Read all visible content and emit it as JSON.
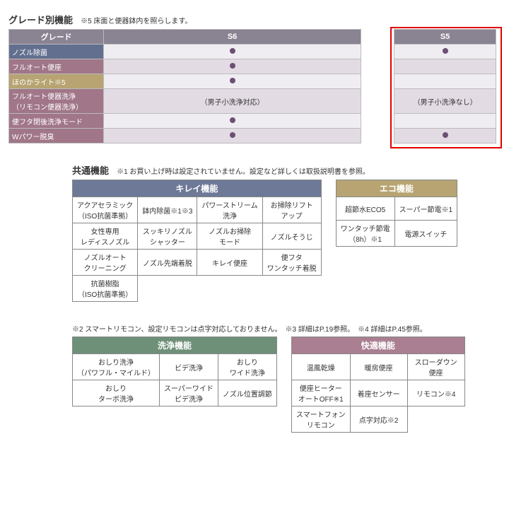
{
  "grade": {
    "title": "グレード別機能",
    "note": "※5 床面と便器鉢内を照らします。",
    "headers": {
      "grade": "グレード",
      "s6": "S6",
      "s5": "S5"
    },
    "rows": [
      {
        "label": "ノズル除菌",
        "labelBg": "#626f8f",
        "rowTint": "light",
        "s6": "dot",
        "s5": "dot"
      },
      {
        "label": "フルオート便座",
        "labelBg": "#a07688",
        "rowTint": "mid",
        "s6": "dot",
        "s5": ""
      },
      {
        "label": "ほのかライト※5",
        "labelBg": "#b7a472",
        "rowTint": "light",
        "s6": "dot",
        "s5": ""
      },
      {
        "label": "フルオート便器洗浄\n（リモコン便器洗浄）",
        "labelBg": "#a07688",
        "rowTint": "mid",
        "s6": "（男子小洗浄対応）",
        "s5": "（男子小洗浄なし）"
      },
      {
        "label": "便フタ閉後洗浄モード",
        "labelBg": "#a07688",
        "rowTint": "light",
        "s6": "dot",
        "s5": ""
      },
      {
        "label": "Wパワー脱臭",
        "labelBg": "#a07688",
        "rowTint": "mid",
        "s6": "dot",
        "s5": "dot"
      }
    ]
  },
  "common": {
    "title": "共通機能",
    "note": "※1 お買い上げ時は設定されていません。設定など詳しくは取扱説明書を参照。",
    "kirei": {
      "title": "キレイ機能",
      "rows": [
        [
          "アクアセラミック\n（ISO抗菌準拠）",
          "鉢内除菌※1※3",
          "パワーストリーム\n洗浄",
          "お掃除リフト\nアップ"
        ],
        [
          "女性専用\nレディスノズル",
          "スッキリノズル\nシャッター",
          "ノズルお掃除\nモード",
          "ノズルそうじ"
        ],
        [
          "ノズルオート\nクリーニング",
          "ノズル先端着脱",
          "キレイ便座",
          "便フタ\nワンタッチ着脱"
        ],
        [
          "抗菌樹脂\n（ISO抗菌準拠）",
          "",
          "",
          ""
        ]
      ]
    },
    "eco": {
      "title": "エコ機能",
      "rows": [
        [
          "超節水ECO5",
          "スーパー節電※1"
        ],
        [
          "ワンタッチ節電\n（8h）※1",
          "電源スイッチ"
        ]
      ]
    },
    "note2": "※2 スマートリモコン、設定リモコンは点字対応しておりません。　※3 詳細はP.19参照。　※4 詳細はP.45参照。",
    "senjo": {
      "title": "洗浄機能",
      "rows": [
        [
          "おしり洗浄\n（パワフル・マイルド）",
          "ビデ洗浄",
          "おしり\nワイド洗浄"
        ],
        [
          "おしり\nターボ洗浄",
          "スーパーワイド\nビデ洗浄",
          "ノズル位置調節"
        ]
      ]
    },
    "kaiteki": {
      "title": "快適機能",
      "rows": [
        [
          "温風乾燥",
          "暖房便座",
          "スローダウン\n便座"
        ],
        [
          "便座ヒーター\nオートOFF※1",
          "着座センサー",
          "リモコン※4"
        ],
        [
          "スマートフォン\nリモコン",
          "点字対応※2",
          ""
        ]
      ]
    }
  }
}
